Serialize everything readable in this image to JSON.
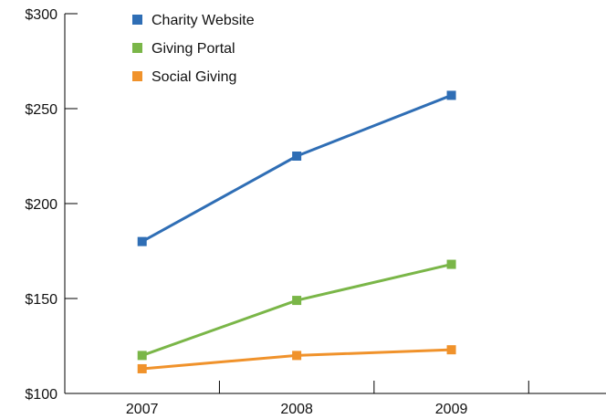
{
  "chart_data": {
    "type": "line",
    "title": "",
    "xlabel": "",
    "ylabel": "",
    "categories": [
      "2007",
      "2008",
      "2009"
    ],
    "ylim": [
      100,
      300
    ],
    "y_ticks": [
      100,
      150,
      200,
      250,
      300
    ],
    "y_tick_labels": [
      "$100",
      "$150",
      "$200",
      "$250",
      "$300"
    ],
    "grid": false,
    "legend_position": "top-left",
    "series": [
      {
        "name": "Charity Website",
        "color": "#2f6eb5",
        "values": [
          180,
          225,
          257
        ]
      },
      {
        "name": "Giving Portal",
        "color": "#7ab648",
        "values": [
          120,
          149,
          168
        ]
      },
      {
        "name": "Social Giving",
        "color": "#f0922b",
        "values": [
          113,
          120,
          123
        ]
      }
    ]
  }
}
